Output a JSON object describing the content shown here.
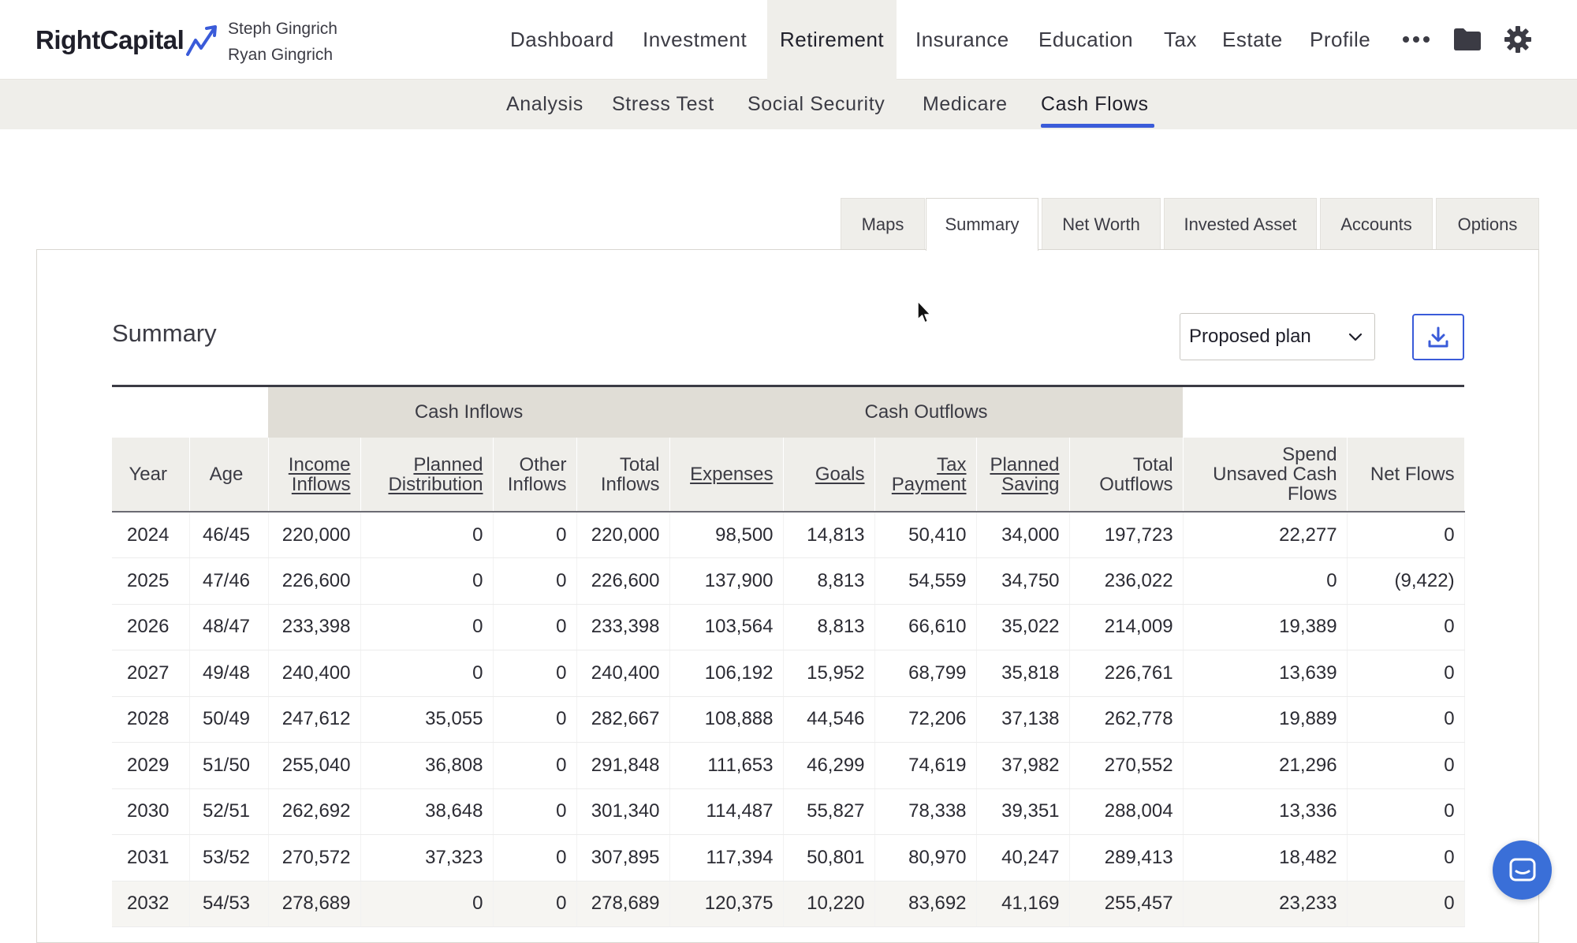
{
  "brand": {
    "name": "RightCapital",
    "accent": "#3a5bd9"
  },
  "clients": [
    "Steph Gingrich",
    "Ryan Gingrich"
  ],
  "main_nav": [
    {
      "label": "Dashboard"
    },
    {
      "label": "Investment"
    },
    {
      "label": "Retirement",
      "active": true
    },
    {
      "label": "Insurance"
    },
    {
      "label": "Education"
    },
    {
      "label": "Tax"
    },
    {
      "label": "Estate"
    },
    {
      "label": "Profile"
    }
  ],
  "nav_icons": [
    "more-icon",
    "folder-icon",
    "gear-icon"
  ],
  "sub_nav": [
    {
      "label": "Analysis"
    },
    {
      "label": "Stress Test"
    },
    {
      "label": "Social Security"
    },
    {
      "label": "Medicare"
    },
    {
      "label": "Cash Flows",
      "active": true
    }
  ],
  "tabs": [
    {
      "label": "Maps"
    },
    {
      "label": "Summary",
      "active": true
    },
    {
      "label": "Net Worth"
    },
    {
      "label": "Invested Asset"
    },
    {
      "label": "Accounts"
    },
    {
      "label": "Options"
    }
  ],
  "summary": {
    "title": "Summary",
    "plan_select": "Proposed plan",
    "group_headers": {
      "inflows": "Cash Inflows",
      "outflows": "Cash Outflows"
    },
    "columns": {
      "year": "Year",
      "age": "Age",
      "income_inflows_1": "Income",
      "income_inflows_2": "Inflows",
      "planned_distribution_1": "Planned",
      "planned_distribution_2": "Distribution",
      "other_inflows_1": "Other",
      "other_inflows_2": "Inflows",
      "total_inflows_1": "Total",
      "total_inflows_2": "Inflows",
      "expenses": "Expenses",
      "goals": "Goals",
      "tax_payment_1": "Tax",
      "tax_payment_2": "Payment",
      "planned_saving_1": "Planned",
      "planned_saving_2": "Saving",
      "total_outflows_1": "Total",
      "total_outflows_2": "Outflows",
      "spend_unsaved_1": "Spend",
      "spend_unsaved_2": "Unsaved Cash",
      "spend_unsaved_3": "Flows",
      "net_flows": "Net Flows"
    },
    "rows": [
      [
        "2024",
        "46/45",
        "220,000",
        "0",
        "0",
        "220,000",
        "98,500",
        "14,813",
        "50,410",
        "34,000",
        "197,723",
        "22,277",
        "0"
      ],
      [
        "2025",
        "47/46",
        "226,600",
        "0",
        "0",
        "226,600",
        "137,900",
        "8,813",
        "54,559",
        "34,750",
        "236,022",
        "0",
        "(9,422)"
      ],
      [
        "2026",
        "48/47",
        "233,398",
        "0",
        "0",
        "233,398",
        "103,564",
        "8,813",
        "66,610",
        "35,022",
        "214,009",
        "19,389",
        "0"
      ],
      [
        "2027",
        "49/48",
        "240,400",
        "0",
        "0",
        "240,400",
        "106,192",
        "15,952",
        "68,799",
        "35,818",
        "226,761",
        "13,639",
        "0"
      ],
      [
        "2028",
        "50/49",
        "247,612",
        "35,055",
        "0",
        "282,667",
        "108,888",
        "44,546",
        "72,206",
        "37,138",
        "262,778",
        "19,889",
        "0"
      ],
      [
        "2029",
        "51/50",
        "255,040",
        "36,808",
        "0",
        "291,848",
        "111,653",
        "46,299",
        "74,619",
        "37,982",
        "270,552",
        "21,296",
        "0"
      ],
      [
        "2030",
        "52/51",
        "262,692",
        "38,648",
        "0",
        "301,340",
        "114,487",
        "55,827",
        "78,338",
        "39,351",
        "288,004",
        "13,336",
        "0"
      ],
      [
        "2031",
        "53/52",
        "270,572",
        "37,323",
        "0",
        "307,895",
        "117,394",
        "50,801",
        "80,970",
        "40,247",
        "289,413",
        "18,482",
        "0"
      ],
      [
        "2032",
        "54/53",
        "278,689",
        "0",
        "0",
        "278,689",
        "120,375",
        "10,220",
        "83,692",
        "41,169",
        "255,457",
        "23,233",
        "0"
      ]
    ]
  }
}
